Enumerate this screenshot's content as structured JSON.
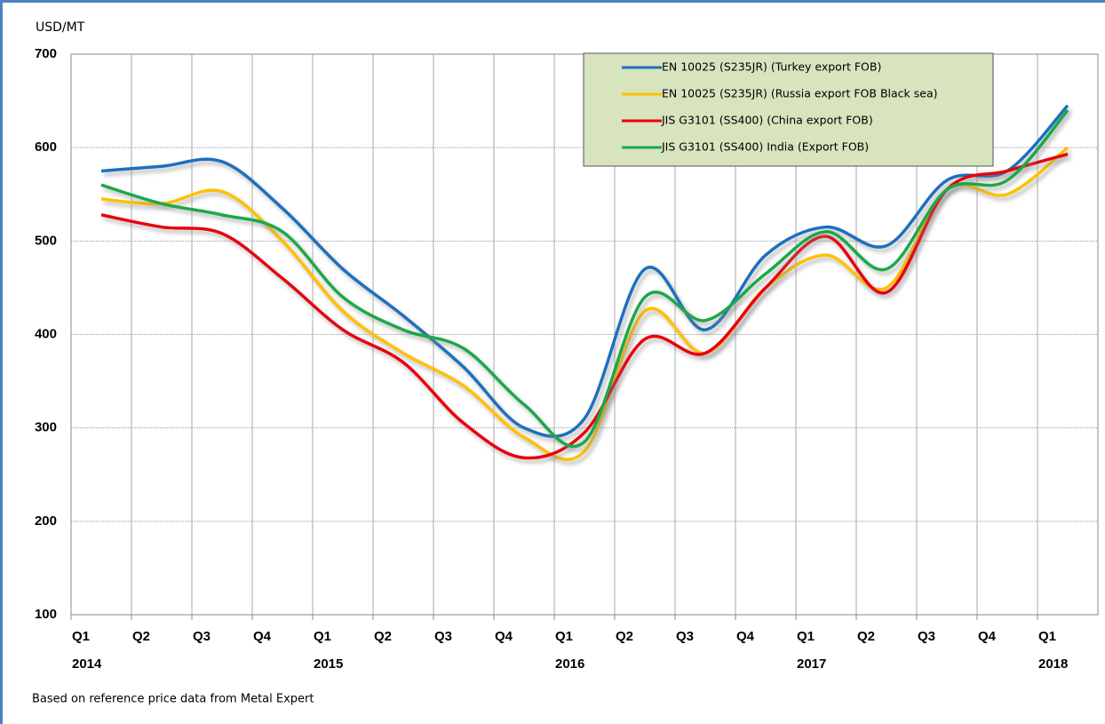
{
  "chart_data": {
    "type": "line",
    "y_label": "USD/MT",
    "footnote": "Based on reference price data from Metal Expert",
    "x": [
      0.5,
      1.5,
      2.5,
      3.5,
      4.5,
      5.5,
      6.5,
      7.5,
      8.5,
      9.5,
      10.5,
      11.5,
      12.5,
      13.5,
      14.5,
      15.5,
      16.5
    ],
    "xlim": [
      0,
      17
    ],
    "xticks": [
      {
        "value": 0,
        "label": "Q1"
      },
      {
        "value": 1,
        "label": "Q2"
      },
      {
        "value": 2,
        "label": "Q3"
      },
      {
        "value": 3,
        "label": "Q4"
      },
      {
        "value": 4,
        "label": "Q1"
      },
      {
        "value": 5,
        "label": "Q2"
      },
      {
        "value": 6,
        "label": "Q3"
      },
      {
        "value": 7,
        "label": "Q4"
      },
      {
        "value": 8,
        "label": "Q1"
      },
      {
        "value": 9,
        "label": "Q2"
      },
      {
        "value": 10,
        "label": "Q3"
      },
      {
        "value": 11,
        "label": "Q4"
      },
      {
        "value": 12,
        "label": "Q1"
      },
      {
        "value": 13,
        "label": "Q2"
      },
      {
        "value": 14,
        "label": "Q3"
      },
      {
        "value": 15,
        "label": "Q4"
      },
      {
        "value": 16,
        "label": "Q1"
      }
    ],
    "year_labels": [
      {
        "value": 0,
        "label": "2014"
      },
      {
        "value": 4,
        "label": "2015"
      },
      {
        "value": 8,
        "label": "2016"
      },
      {
        "value": 12,
        "label": "2017"
      },
      {
        "value": 16,
        "label": "2018"
      }
    ],
    "ylim": [
      100,
      700
    ],
    "yticks": [
      100,
      200,
      300,
      400,
      500,
      600,
      700
    ],
    "grid": true,
    "legend": "top-right",
    "series": [
      {
        "name": "EN 10025 (S235JR) (Turkey export FOB)",
        "color": "#1f6fbf",
        "values": [
          575,
          580,
          585,
          535,
          470,
          420,
          365,
          300,
          310,
          470,
          405,
          485,
          515,
          495,
          565,
          575,
          645
        ]
      },
      {
        "name": "EN 10025 (S235JR) (Russia export FOB Black sea)",
        "color": "#ffc000",
        "values": [
          545,
          540,
          553,
          500,
          425,
          380,
          345,
          290,
          275,
          425,
          380,
          450,
          485,
          450,
          555,
          550,
          600
        ]
      },
      {
        "name": "JIS G3101 (SS400) (China export FOB)",
        "color": "#e8000b",
        "values": [
          528,
          515,
          508,
          460,
          405,
          370,
          305,
          268,
          295,
          395,
          380,
          450,
          505,
          445,
          555,
          575,
          593
        ]
      },
      {
        "name": "JIS G3101 (SS400) India (Export FOB)",
        "color": "#1ea84a",
        "values": [
          560,
          540,
          528,
          510,
          440,
          405,
          385,
          325,
          285,
          440,
          415,
          465,
          510,
          470,
          555,
          565,
          640
        ]
      }
    ]
  }
}
